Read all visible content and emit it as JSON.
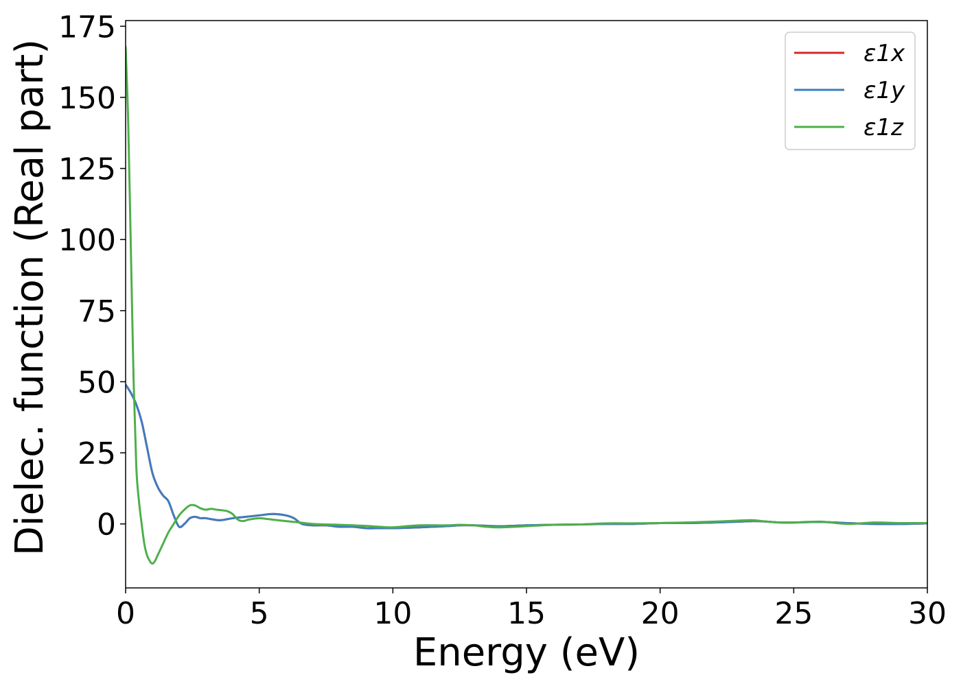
{
  "chart_data": {
    "type": "line",
    "title": "",
    "xlabel": "Energy (eV)",
    "ylabel": "Dielec. function (Real part)",
    "xlim": [
      0,
      30
    ],
    "ylim": [
      -22.5,
      177
    ],
    "xticks": [
      0,
      5,
      10,
      15,
      20,
      25,
      30
    ],
    "xtick_labels": [
      "0",
      "5",
      "10",
      "15",
      "20",
      "25",
      "30"
    ],
    "yticks": [
      0,
      25,
      50,
      75,
      100,
      125,
      150,
      175
    ],
    "ytick_labels": [
      "0",
      "25",
      "50",
      "75",
      "100",
      "125",
      "150",
      "175"
    ],
    "grid": false,
    "legend_position": "top-right",
    "series": [
      {
        "name": "ε1x",
        "color": "#d62728",
        "x": [
          0,
          0.2,
          0.4,
          0.6,
          0.8,
          1.0,
          1.2,
          1.4,
          1.6,
          1.8,
          2.0,
          2.2,
          2.4,
          2.6,
          2.8,
          3.0,
          3.5,
          4.0,
          4.5,
          5.0,
          5.5,
          6.0,
          6.3,
          6.6,
          7.0,
          7.5,
          8.0,
          8.5,
          9.0,
          9.5,
          10.0,
          11.0,
          12.0,
          12.5,
          13.0,
          14.0,
          15.0,
          16.0,
          17.0,
          18.0,
          19.0,
          20.0,
          21.0,
          22.0,
          23.0,
          23.5,
          24.0,
          24.5,
          25.0,
          26.0,
          27.0,
          28.0,
          29.0,
          30.0
        ],
        "y": [
          49,
          46,
          42,
          36,
          27,
          18,
          13,
          10,
          8,
          3,
          -1,
          0,
          2,
          2.5,
          2,
          2,
          1.3,
          2,
          2.5,
          3,
          3.5,
          3,
          2,
          0,
          -0.5,
          -0.5,
          -1,
          -1,
          -1.5,
          -1.5,
          -1.5,
          -1.2,
          -0.8,
          -0.5,
          -0.5,
          -0.8,
          -0.5,
          -0.3,
          -0.2,
          0,
          0,
          0.3,
          0.3,
          0.5,
          0.8,
          1,
          0.8,
          0.5,
          0.5,
          0.7,
          0.3,
          0,
          0,
          0.2
        ]
      },
      {
        "name": "ε1y",
        "color": "#3e7dbf",
        "x": [
          0,
          0.2,
          0.4,
          0.6,
          0.8,
          1.0,
          1.2,
          1.4,
          1.6,
          1.8,
          2.0,
          2.2,
          2.4,
          2.6,
          2.8,
          3.0,
          3.5,
          4.0,
          4.5,
          5.0,
          5.5,
          6.0,
          6.3,
          6.6,
          7.0,
          7.5,
          8.0,
          8.5,
          9.0,
          9.5,
          10.0,
          11.0,
          12.0,
          12.5,
          13.0,
          14.0,
          15.0,
          16.0,
          17.0,
          18.0,
          19.0,
          20.0,
          21.0,
          22.0,
          23.0,
          23.5,
          24.0,
          24.5,
          25.0,
          26.0,
          27.0,
          28.0,
          29.0,
          30.0
        ],
        "y": [
          49,
          46,
          42,
          36,
          27,
          18,
          13,
          10,
          8,
          3,
          -1,
          0,
          2,
          2.5,
          2,
          2,
          1.3,
          2,
          2.5,
          3,
          3.5,
          3,
          2,
          0,
          -0.5,
          -0.5,
          -1,
          -1,
          -1.5,
          -1.5,
          -1.5,
          -1.2,
          -0.8,
          -0.5,
          -0.5,
          -0.8,
          -0.5,
          -0.3,
          -0.2,
          0,
          0,
          0.3,
          0.3,
          0.5,
          0.8,
          1,
          0.8,
          0.5,
          0.5,
          0.7,
          0.3,
          0,
          0,
          0.2
        ]
      },
      {
        "name": "ε1z",
        "color": "#4daf4a",
        "x": [
          0,
          0.1,
          0.2,
          0.3,
          0.4,
          0.5,
          0.6,
          0.7,
          0.8,
          0.9,
          1.0,
          1.1,
          1.2,
          1.4,
          1.6,
          1.8,
          2.0,
          2.2,
          2.4,
          2.6,
          2.8,
          3.0,
          3.2,
          3.4,
          3.6,
          3.8,
          4.0,
          4.2,
          4.4,
          4.6,
          5.0,
          5.5,
          6.0,
          6.5,
          7.0,
          7.5,
          8.0,
          8.5,
          9.0,
          9.5,
          10.0,
          11.0,
          12.0,
          12.5,
          13.0,
          13.5,
          14.0,
          15.0,
          16.0,
          17.0,
          18.0,
          19.0,
          20.0,
          21.0,
          22.0,
          23.0,
          23.5,
          24.0,
          24.5,
          25.0,
          26.0,
          27.0,
          28.0,
          29.0,
          30.0
        ],
        "y": [
          168,
          140,
          95,
          50,
          20,
          8,
          0,
          -7,
          -11,
          -13,
          -14,
          -13,
          -11,
          -7,
          -3,
          0,
          3,
          5,
          6.5,
          6.5,
          5.5,
          5,
          5.3,
          5,
          4.8,
          4.5,
          3.5,
          1.5,
          1,
          1.5,
          2,
          1.5,
          1,
          0.5,
          0,
          -0.2,
          -0.3,
          -0.5,
          -0.7,
          -1,
          -1.2,
          -0.5,
          -0.5,
          -0.3,
          -0.5,
          -1,
          -1.2,
          -0.8,
          -0.3,
          -0.2,
          0.2,
          0.2,
          0.3,
          0.5,
          0.8,
          1.2,
          1.3,
          0.8,
          0.5,
          0.5,
          0.8,
          0,
          0.5,
          0.3,
          0.3
        ]
      }
    ]
  }
}
